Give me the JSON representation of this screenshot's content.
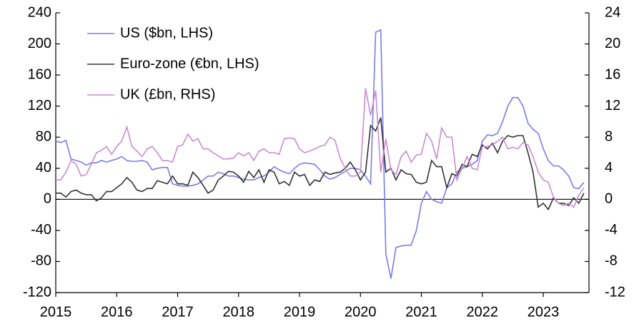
{
  "chart_data": {
    "type": "line",
    "x": [
      2015,
      2015.083,
      2015.167,
      2015.25,
      2015.333,
      2015.417,
      2015.5,
      2015.583,
      2015.667,
      2015.75,
      2015.833,
      2015.917,
      2016,
      2016.083,
      2016.167,
      2016.25,
      2016.333,
      2016.417,
      2016.5,
      2016.583,
      2016.667,
      2016.75,
      2016.833,
      2016.917,
      2017,
      2017.083,
      2017.167,
      2017.25,
      2017.333,
      2017.417,
      2017.5,
      2017.583,
      2017.667,
      2017.75,
      2017.833,
      2017.917,
      2018,
      2018.083,
      2018.167,
      2018.25,
      2018.333,
      2018.417,
      2018.5,
      2018.583,
      2018.667,
      2018.75,
      2018.833,
      2018.917,
      2019,
      2019.083,
      2019.167,
      2019.25,
      2019.333,
      2019.417,
      2019.5,
      2019.583,
      2019.667,
      2019.75,
      2019.833,
      2019.917,
      2020,
      2020.083,
      2020.167,
      2020.25,
      2020.333,
      2020.417,
      2020.5,
      2020.583,
      2020.667,
      2020.75,
      2020.833,
      2020.917,
      2021,
      2021.083,
      2021.167,
      2021.25,
      2021.333,
      2021.417,
      2021.5,
      2021.583,
      2021.667,
      2021.75,
      2021.833,
      2021.917,
      2022,
      2022.083,
      2022.167,
      2022.25,
      2022.333,
      2022.417,
      2022.5,
      2022.583,
      2022.667,
      2022.75,
      2022.833,
      2022.917,
      2023,
      2023.083,
      2023.167,
      2023.25,
      2023.333,
      2023.417,
      2023.5,
      2023.583,
      2023.667
    ],
    "series": [
      {
        "name": "US ($bn, LHS)",
        "color": "#7b7bea",
        "values": [
          75,
          73,
          76,
          52,
          50,
          48,
          44,
          47,
          47,
          50,
          48,
          50,
          52,
          55,
          50,
          49,
          49,
          50,
          48,
          38,
          40,
          41,
          41,
          20,
          18,
          17,
          17,
          18,
          20,
          25,
          30,
          30,
          35,
          33,
          30,
          30,
          28,
          26,
          25,
          25,
          28,
          30,
          35,
          42,
          38,
          35,
          33,
          40,
          45,
          47,
          46,
          45,
          38,
          30,
          26,
          28,
          32,
          36,
          40,
          40,
          38,
          30,
          20,
          215,
          218,
          -70,
          -102,
          -62,
          -60,
          -59,
          -59,
          -40,
          -5,
          10,
          0,
          -3,
          -5,
          15,
          20,
          35,
          40,
          42,
          45,
          50,
          75,
          83,
          82,
          85,
          100,
          120,
          131,
          131,
          120,
          98,
          90,
          85,
          65,
          50,
          43,
          43,
          38,
          30,
          15,
          14,
          22
        ]
      },
      {
        "name": "Euro-zone (€bn, LHS)",
        "color": "#333333",
        "values": [
          8,
          8,
          3,
          10,
          12,
          8,
          6,
          6,
          -2,
          2,
          10,
          10,
          15,
          20,
          28,
          22,
          12,
          10,
          14,
          14,
          24,
          22,
          20,
          30,
          20,
          20,
          18,
          35,
          28,
          18,
          8,
          12,
          25,
          30,
          36,
          35,
          30,
          22,
          36,
          28,
          38,
          22,
          38,
          35,
          20,
          23,
          18,
          35,
          30,
          32,
          18,
          25,
          23,
          35,
          32,
          34,
          35,
          40,
          48,
          38,
          25,
          35,
          95,
          88,
          105,
          35,
          40,
          25,
          38,
          33,
          32,
          22,
          20,
          22,
          50,
          42,
          42,
          15,
          33,
          30,
          45,
          42,
          58,
          55,
          70,
          65,
          72,
          60,
          75,
          82,
          80,
          82,
          82,
          60,
          35,
          -10,
          -5,
          -13,
          2,
          -5,
          -5,
          -8,
          2,
          -5,
          8
        ]
      },
      {
        "name": "UK (£bn, RHS)",
        "color": "#c98bd0",
        "axis": "y2",
        "values": [
          2.5,
          2.5,
          3.5,
          5,
          4.5,
          3,
          3.2,
          4.5,
          6,
          6.3,
          6.8,
          5.8,
          6.8,
          7.5,
          9.3,
          6.8,
          6.2,
          5.5,
          6.5,
          6.8,
          6,
          5,
          5,
          4.8,
          6.8,
          7,
          8.4,
          7.5,
          7.8,
          6.5,
          6.5,
          6,
          5.6,
          5.2,
          5.2,
          5.3,
          6,
          5.6,
          6,
          5,
          6.2,
          6.5,
          6,
          6,
          5.8,
          7.8,
          7.9,
          7.8,
          6.5,
          6,
          6.2,
          6.5,
          6.8,
          7,
          8,
          7.6,
          5.3,
          4,
          3,
          3,
          3.5,
          14.3,
          10.8,
          14,
          3.5,
          7.8,
          3.8,
          3.2,
          5.5,
          6.2,
          4.8,
          5.7,
          5.8,
          8.5,
          7.5,
          5.2,
          9.2,
          8,
          8,
          2.5,
          4,
          5.5,
          4,
          3.8,
          6.8,
          6.8,
          7,
          7.5,
          8,
          6.5,
          6.7,
          6.5,
          7.3,
          7,
          5.5,
          3.5,
          2.5,
          2.2,
          0.3,
          -0.5,
          -0.8,
          -0.5,
          -1,
          0.5,
          1.5
        ]
      }
    ],
    "xlim": [
      2015,
      2023.75
    ],
    "xticks": [
      2015,
      2016,
      2017,
      2018,
      2019,
      2020,
      2021,
      2022,
      2023
    ],
    "ylim": [
      -120,
      240
    ],
    "yticks": [
      -120,
      -80,
      -40,
      0,
      40,
      80,
      120,
      160,
      200,
      240
    ],
    "y2lim": [
      -12,
      24
    ],
    "y2ticks": [
      -12,
      -8,
      -4,
      0,
      4,
      8,
      12,
      16,
      20,
      24
    ],
    "legend": "upper left"
  }
}
